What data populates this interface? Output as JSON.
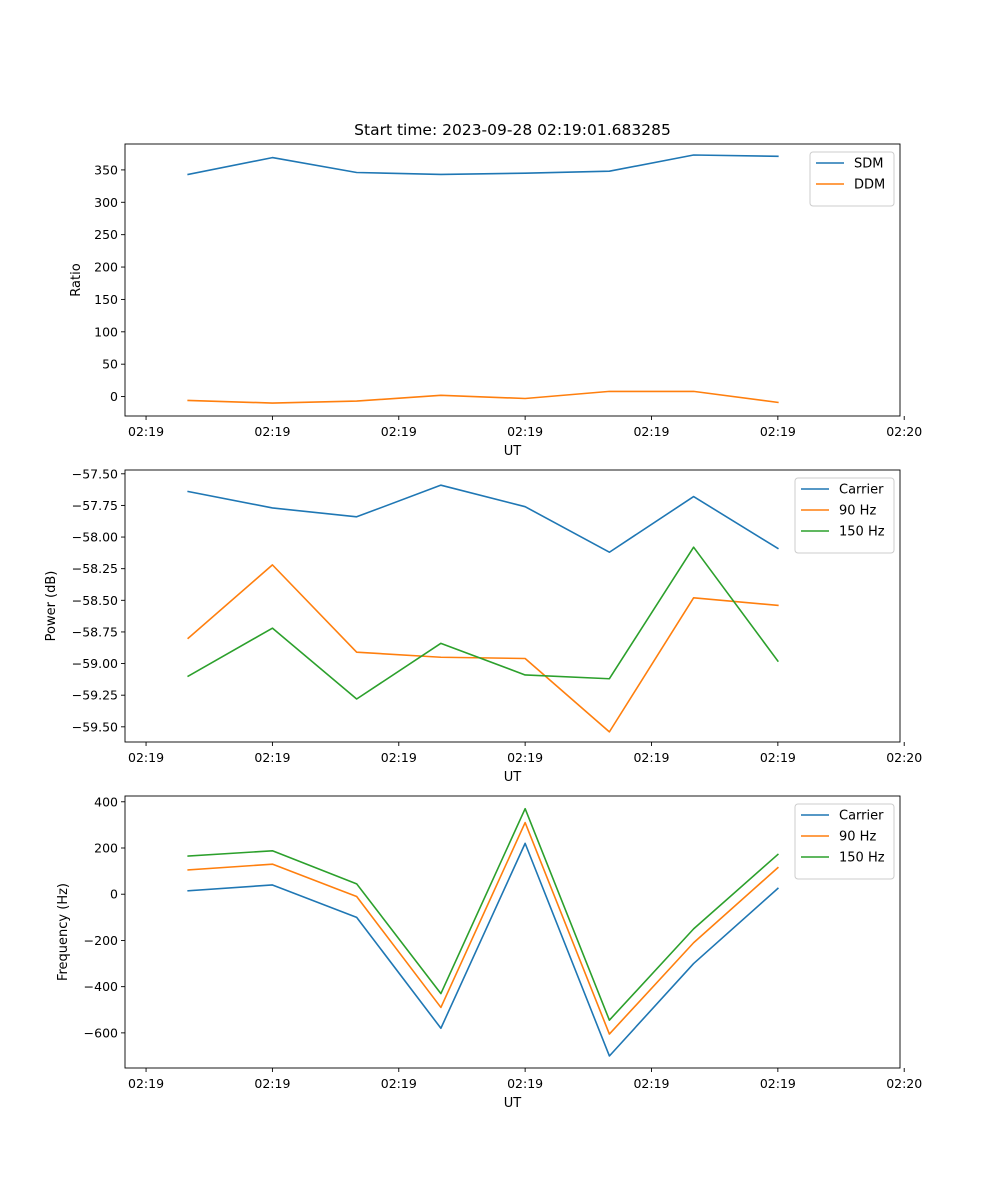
{
  "chart_data": [
    {
      "type": "line",
      "title": "Start time: 2023-09-28 02:19:01.683285",
      "xlabel": "UT",
      "ylabel": "Ratio",
      "x": [
        0,
        1,
        2,
        3,
        4,
        5,
        6,
        7
      ],
      "xlim": [
        -0.75,
        8.45
      ],
      "x_ticks": [
        -0.5,
        1.0,
        2.5,
        4.0,
        5.5,
        7.0,
        8.5
      ],
      "x_tick_labels": [
        "02:19",
        "02:19",
        "02:19",
        "02:19",
        "02:19",
        "02:19",
        "02:20"
      ],
      "ylim": [
        -30,
        390
      ],
      "y_ticks": [
        0,
        50,
        100,
        150,
        200,
        250,
        300,
        350
      ],
      "y_tick_labels": [
        "0",
        "50",
        "100",
        "150",
        "200",
        "250",
        "300",
        "350"
      ],
      "legend_position": "top-right",
      "series": [
        {
          "name": "SDM",
          "color": "#1f77b4",
          "values": [
            343,
            369,
            346,
            343,
            345,
            348,
            373,
            371
          ]
        },
        {
          "name": "DDM",
          "color": "#ff7f0e",
          "values": [
            -6,
            -10,
            -7,
            2,
            -3,
            8,
            8,
            -9
          ]
        }
      ]
    },
    {
      "type": "line",
      "title": "",
      "xlabel": "UT",
      "ylabel": "Power (dB)",
      "x": [
        0,
        1,
        2,
        3,
        4,
        5,
        6,
        7
      ],
      "xlim": [
        -0.75,
        8.45
      ],
      "x_ticks": [
        -0.5,
        1.0,
        2.5,
        4.0,
        5.5,
        7.0,
        8.5
      ],
      "x_tick_labels": [
        "02:19",
        "02:19",
        "02:19",
        "02:19",
        "02:19",
        "02:19",
        "02:20"
      ],
      "ylim": [
        -59.62,
        -57.47
      ],
      "y_ticks": [
        -59.5,
        -59.25,
        -59.0,
        -58.75,
        -58.5,
        -58.25,
        -58.0,
        -57.75,
        -57.5
      ],
      "y_tick_labels": [
        "−59.50",
        "−59.25",
        "−59.00",
        "−58.75",
        "−58.50",
        "−58.25",
        "−58.00",
        "−57.75",
        "−57.50"
      ],
      "legend_position": "top-right",
      "series": [
        {
          "name": "Carrier",
          "color": "#1f77b4",
          "values": [
            -57.64,
            -57.77,
            -57.84,
            -57.59,
            -57.76,
            -58.12,
            -57.68,
            -58.09
          ]
        },
        {
          "name": "90 Hz",
          "color": "#ff7f0e",
          "values": [
            -58.8,
            -58.22,
            -58.91,
            -58.95,
            -58.96,
            -59.54,
            -58.48,
            -58.54
          ]
        },
        {
          "name": "150 Hz",
          "color": "#2ca02c",
          "values": [
            -59.1,
            -58.72,
            -59.28,
            -58.84,
            -59.09,
            -59.12,
            -58.08,
            -58.98
          ]
        }
      ]
    },
    {
      "type": "line",
      "title": "",
      "xlabel": "UT",
      "ylabel": "Frequency (Hz)",
      "x": [
        0,
        1,
        2,
        3,
        4,
        5,
        6,
        7
      ],
      "xlim": [
        -0.75,
        8.45
      ],
      "x_ticks": [
        -0.5,
        1.0,
        2.5,
        4.0,
        5.5,
        7.0,
        8.5
      ],
      "x_tick_labels": [
        "02:19",
        "02:19",
        "02:19",
        "02:19",
        "02:19",
        "02:19",
        "02:20"
      ],
      "ylim": [
        -752,
        425
      ],
      "y_ticks": [
        -600,
        -400,
        -200,
        0,
        200,
        400
      ],
      "y_tick_labels": [
        "−600",
        "−400",
        "−200",
        "0",
        "200",
        "400"
      ],
      "legend_position": "top-right",
      "series": [
        {
          "name": "Carrier",
          "color": "#1f77b4",
          "values": [
            15,
            40,
            -100,
            -580,
            220,
            -700,
            -300,
            25
          ]
        },
        {
          "name": "90 Hz",
          "color": "#ff7f0e",
          "values": [
            105,
            130,
            -10,
            -490,
            310,
            -605,
            -210,
            115
          ]
        },
        {
          "name": "150 Hz",
          "color": "#2ca02c",
          "values": [
            165,
            188,
            45,
            -430,
            370,
            -545,
            -150,
            172
          ]
        }
      ]
    }
  ]
}
